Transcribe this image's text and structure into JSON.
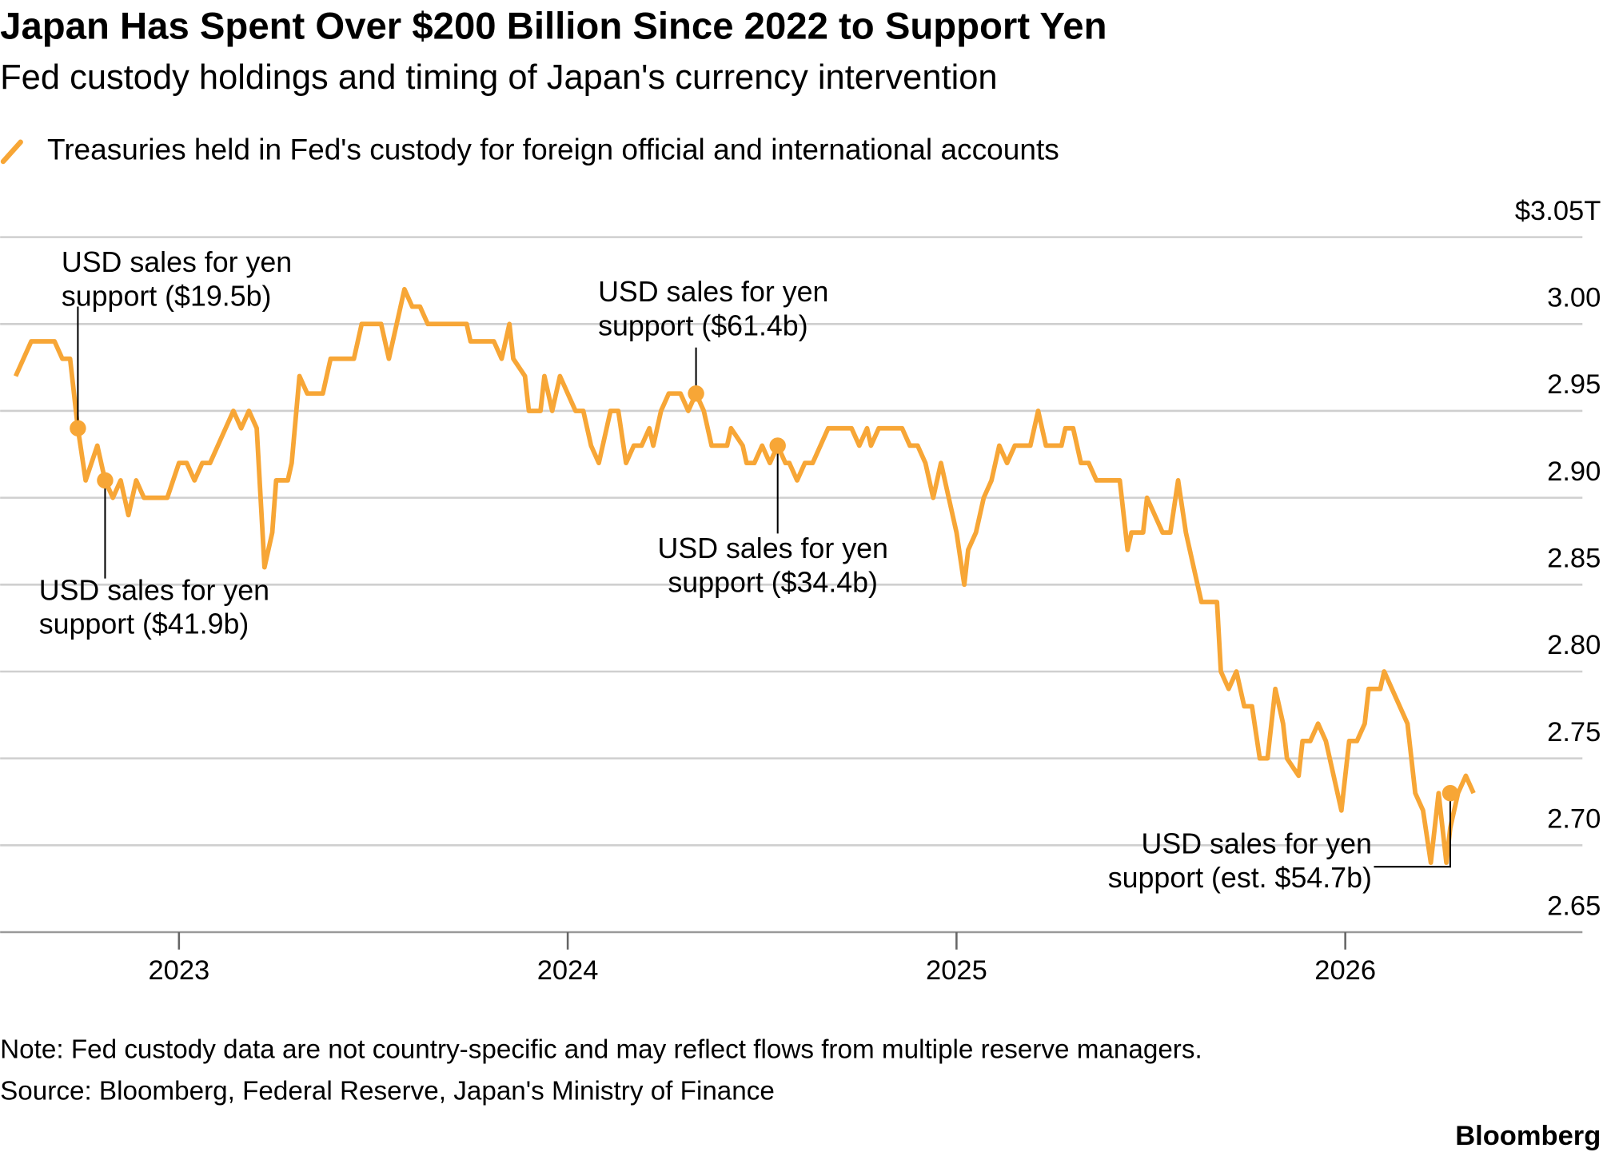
{
  "chart_data": {
    "type": "line",
    "title": "Japan Has Spent Over $200 Billion Since 2022 to Support Yen",
    "subtitle": "Fed custody holdings and timing of Japan's currency intervention",
    "note": "Note: Fed custody data are not country-specific and may reflect flows from multiple reserve managers.",
    "source": "Source: Bloomberg, Federal Reserve, Japan's Ministry of Finance",
    "brand": "Bloomberg",
    "x": [
      2022.58,
      2022.62,
      2022.68,
      2022.7,
      2022.72,
      2022.74,
      2022.76,
      2022.79,
      2022.81,
      2022.83,
      2022.85,
      2022.87,
      2022.89,
      2022.91,
      2022.97,
      2023.0,
      2023.02,
      2023.04,
      2023.06,
      2023.08,
      2023.14,
      2023.16,
      2023.18,
      2023.2,
      2023.22,
      2023.24,
      2023.25,
      2023.28,
      2023.29,
      2023.31,
      2023.33,
      2023.37,
      2023.39,
      2023.45,
      2023.47,
      2023.52,
      2023.54,
      2023.58,
      2023.6,
      2023.62,
      2023.64,
      2023.74,
      2023.75,
      2023.81,
      2023.83,
      2023.85,
      2023.86,
      2023.89,
      2023.9,
      2023.93,
      2023.94,
      2023.96,
      2023.98,
      2024.02,
      2024.04,
      2024.06,
      2024.08,
      2024.1,
      2024.11,
      2024.13,
      2024.15,
      2024.17,
      2024.19,
      2024.21,
      2024.22,
      2024.24,
      2024.26,
      2024.29,
      2024.31,
      2024.33,
      2024.35,
      2024.37,
      2024.41,
      2024.42,
      2024.45,
      2024.46,
      2024.48,
      2024.5,
      2024.52,
      2024.54,
      2024.56,
      2024.57,
      2024.59,
      2024.61,
      2024.63,
      2024.67,
      2024.73,
      2024.75,
      2024.77,
      2024.78,
      2024.8,
      2024.86,
      2024.88,
      2024.9,
      2024.92,
      2024.94,
      2024.96,
      2024.98,
      2025.0,
      2025.02,
      2025.03,
      2025.05,
      2025.07,
      2025.09,
      2025.11,
      2025.13,
      2025.15,
      2025.19,
      2025.21,
      2025.23,
      2025.27,
      2025.28,
      2025.3,
      2025.32,
      2025.34,
      2025.36,
      2025.42,
      2025.44,
      2025.45,
      2025.48,
      2025.49,
      2025.51,
      2025.53,
      2025.55,
      2025.57,
      2025.59,
      2025.61,
      2025.63,
      2025.67,
      2025.68,
      2025.7,
      2025.72,
      2025.74,
      2025.76,
      2025.78,
      2025.8,
      2025.82,
      2025.84,
      2025.85,
      2025.88,
      2025.89,
      2025.91,
      2025.93,
      2025.95,
      2025.97,
      2025.99,
      2026.01,
      2026.03,
      2026.05,
      2026.06,
      2026.09,
      2026.1,
      2026.12,
      2026.16,
      2026.18,
      2026.2,
      2026.22,
      2026.24,
      2026.26,
      2026.27,
      2026.29,
      2026.31,
      2026.33
    ],
    "series": [
      {
        "name": "Treasuries held in Fed's custody for foreign official and international accounts",
        "color": "#f7a636",
        "values": [
          2.97,
          2.99,
          2.99,
          2.98,
          2.98,
          2.94,
          2.91,
          2.93,
          2.91,
          2.9,
          2.91,
          2.89,
          2.91,
          2.9,
          2.9,
          2.92,
          2.92,
          2.91,
          2.92,
          2.92,
          2.95,
          2.94,
          2.95,
          2.94,
          2.86,
          2.88,
          2.91,
          2.91,
          2.92,
          2.97,
          2.96,
          2.96,
          2.98,
          2.98,
          3.0,
          3.0,
          2.98,
          3.02,
          3.01,
          3.01,
          3.0,
          3.0,
          2.99,
          2.99,
          2.98,
          3.0,
          2.98,
          2.97,
          2.95,
          2.95,
          2.97,
          2.95,
          2.97,
          2.95,
          2.95,
          2.93,
          2.92,
          2.94,
          2.95,
          2.95,
          2.92,
          2.93,
          2.93,
          2.94,
          2.93,
          2.95,
          2.96,
          2.96,
          2.95,
          2.96,
          2.95,
          2.93,
          2.93,
          2.94,
          2.93,
          2.92,
          2.92,
          2.93,
          2.92,
          2.93,
          2.92,
          2.92,
          2.91,
          2.92,
          2.92,
          2.94,
          2.94,
          2.93,
          2.94,
          2.93,
          2.94,
          2.94,
          2.93,
          2.93,
          2.92,
          2.9,
          2.92,
          2.9,
          2.88,
          2.85,
          2.87,
          2.88,
          2.9,
          2.91,
          2.93,
          2.92,
          2.93,
          2.93,
          2.95,
          2.93,
          2.93,
          2.94,
          2.94,
          2.92,
          2.92,
          2.91,
          2.91,
          2.87,
          2.88,
          2.88,
          2.9,
          2.89,
          2.88,
          2.88,
          2.91,
          2.88,
          2.86,
          2.84,
          2.84,
          2.8,
          2.79,
          2.8,
          2.78,
          2.78,
          2.75,
          2.75,
          2.79,
          2.77,
          2.75,
          2.74,
          2.76,
          2.76,
          2.77,
          2.76,
          2.74,
          2.72,
          2.76,
          2.76,
          2.77,
          2.79,
          2.79,
          2.8,
          2.79,
          2.77,
          2.73,
          2.72,
          2.69,
          2.73,
          2.69,
          2.71,
          2.73,
          2.74,
          2.73
        ]
      }
    ],
    "xlim": [
      2022.54,
      2026.61
    ],
    "xticks": [
      2023,
      2024,
      2025,
      2026
    ],
    "ylim": [
      2.65,
      3.05
    ],
    "yticks": [
      2.65,
      {
        "value": 2.7,
        "label": "2.70"
      },
      2.75,
      {
        "value": 2.8,
        "label": "2.80"
      },
      2.85,
      {
        "value": 2.9,
        "label": "2.90"
      },
      2.95,
      {
        "value": 3.0,
        "label": "3.00"
      },
      {
        "value": 3.05,
        "label": "$3.05T"
      }
    ],
    "grid": true,
    "legend": "top-left",
    "annotations": [
      {
        "lines": [
          "USD sales for yen",
          "support ($19.5b)"
        ],
        "x": 2022.74,
        "y": 2.94
      },
      {
        "lines": [
          "USD sales for yen",
          "support ($41.9b)"
        ],
        "x": 2022.81,
        "y": 2.91
      },
      {
        "lines": [
          "USD sales for yen",
          "support ($61.4b)"
        ],
        "x": 2024.33,
        "y": 2.96
      },
      {
        "lines": [
          "USD sales for yen",
          "support ($34.4b)"
        ],
        "x": 2024.54,
        "y": 2.93
      },
      {
        "lines": [
          "USD sales for yen",
          "support (est. $54.7b)"
        ],
        "x": 2026.27,
        "y": 2.73
      }
    ]
  }
}
